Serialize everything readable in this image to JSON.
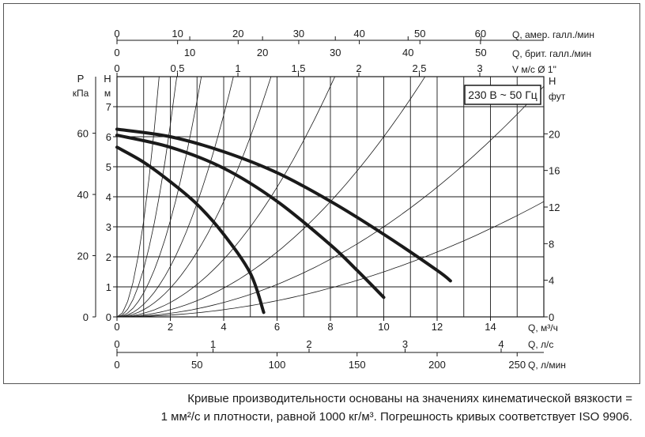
{
  "chart_data": {
    "type": "line",
    "title": "",
    "badge": "230 В ~ 50 Гц",
    "x_axis": {
      "label": "Q, м³/ч",
      "range": [
        0,
        16
      ],
      "ticks": [
        0,
        2,
        4,
        6,
        8,
        10,
        12,
        14
      ],
      "grid_step": 1
    },
    "x_axis_ls": {
      "label": "Q, л/с",
      "ticks": [
        "0",
        "1",
        "2",
        "3",
        "4"
      ],
      "values": [
        0,
        1,
        2,
        3,
        4
      ]
    },
    "x_axis_lmin": {
      "label": "Q, л/мин",
      "ticks": [
        "0",
        "50",
        "100",
        "150",
        "200",
        "250"
      ],
      "values": [
        0,
        50,
        100,
        150,
        200,
        250
      ]
    },
    "top_axis_us": {
      "label": "Q, амер. галл./мин",
      "ticks": [
        "0",
        "10",
        "20",
        "30",
        "40",
        "50",
        "60"
      ],
      "values": [
        0,
        10,
        20,
        30,
        40,
        50,
        60
      ]
    },
    "top_axis_uk": {
      "label": "Q, брит. галл./мин",
      "ticks": [
        "0",
        "10",
        "20",
        "30",
        "40",
        "50"
      ],
      "values": [
        0,
        10,
        20,
        30,
        40,
        50
      ]
    },
    "top_axis_v": {
      "label": "V м/с Ø 1\"",
      "ticks": [
        "0",
        "0,5",
        "1",
        "1,5",
        "2",
        "2,5",
        "3"
      ],
      "values": [
        0,
        0.5,
        1,
        1.5,
        2,
        2.5,
        3
      ]
    },
    "y_axis_m": {
      "label": "H",
      "unit": "м",
      "range": [
        0,
        8
      ],
      "ticks": [
        "0",
        "1",
        "2",
        "3",
        "4",
        "5",
        "6",
        "7"
      ],
      "values": [
        0,
        1,
        2,
        3,
        4,
        5,
        6,
        7
      ]
    },
    "y_axis_kpa": {
      "label": "P",
      "unit": "кПа",
      "ticks": [
        "0",
        "20",
        "40",
        "60"
      ],
      "values": [
        0,
        20,
        40,
        60
      ]
    },
    "y_axis_ft": {
      "label": "H",
      "unit": "фут",
      "ticks": [
        "0",
        "4",
        "8",
        "12",
        "16",
        "20"
      ],
      "values": [
        0,
        4,
        8,
        12,
        16,
        20
      ]
    },
    "series": [
      {
        "x": [
          0,
          1,
          2,
          3,
          4,
          5,
          5.5
        ],
        "y": [
          5.65,
          5.15,
          4.5,
          3.75,
          2.75,
          1.45,
          0.15
        ]
      },
      {
        "x": [
          0,
          2,
          4,
          6,
          8,
          9,
          10
        ],
        "y": [
          6.05,
          5.65,
          4.95,
          3.85,
          2.4,
          1.55,
          0.65
        ]
      },
      {
        "x": [
          0,
          2,
          4,
          6,
          8,
          10,
          12,
          12.5
        ],
        "y": [
          6.25,
          6.0,
          5.5,
          4.8,
          3.85,
          2.75,
          1.55,
          1.2
        ]
      }
    ],
    "system_curves_k": [
      3.2,
      1.6,
      0.8,
      0.42,
      0.24,
      0.12,
      0.06,
      0.03,
      0.015
    ],
    "grid": true
  },
  "footnote": {
    "line1": "Кривые производительности основаны на значениях кинематической вязкости =",
    "line2": "1 мм²/с и плотности, равной 1000 кг/м³. Погрешность кривых соответствует ISO 9906."
  }
}
